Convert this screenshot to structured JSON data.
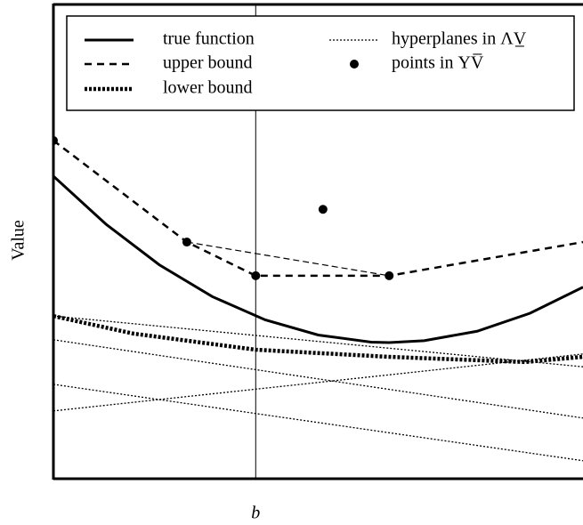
{
  "chart_data": {
    "type": "line",
    "y_label": "Value",
    "x_annotation": {
      "label": "b",
      "x": 0.382
    },
    "xlim": [
      0,
      1
    ],
    "ylim": [
      0,
      1
    ],
    "color": "#000000",
    "legend": "top",
    "series": [
      {
        "name": "true function",
        "style": "solid",
        "x": [
          0,
          0.1,
          0.2,
          0.3,
          0.4,
          0.5,
          0.6,
          0.634,
          0.7,
          0.8,
          0.9,
          1
        ],
        "values": [
          0.638,
          0.536,
          0.451,
          0.384,
          0.335,
          0.303,
          0.288,
          0.287,
          0.291,
          0.311,
          0.349,
          0.404
        ]
      },
      {
        "name": "upper bound",
        "style": "dashed",
        "x": [
          0,
          0.252,
          0.382,
          0.634,
          1
        ],
        "values": [
          0.713,
          0.499,
          0.428,
          0.428,
          0.499
        ]
      },
      {
        "name": "lower bound",
        "style": "dotted-thick",
        "x": [
          0,
          0.151,
          0.382,
          0.634,
          0.891,
          1
        ],
        "values": [
          0.343,
          0.306,
          0.272,
          0.257,
          0.246,
          0.257
        ]
      },
      {
        "name": "hyperplanes in ΛV̲",
        "style": "dotted",
        "x": [
          0,
          1
        ],
        "values": [
          0.343,
          0.236
        ]
      },
      {
        "style": "dotted",
        "x": [
          0,
          1
        ],
        "values": [
          0.293,
          0.128
        ]
      },
      {
        "style": "dotted",
        "x": [
          0,
          1
        ],
        "values": [
          0.199,
          0.038
        ]
      },
      {
        "style": "dotted",
        "x": [
          0,
          1
        ],
        "values": [
          0.143,
          0.263
        ]
      },
      {
        "style": "dashed-thin",
        "x": [
          0.252,
          0.634
        ],
        "values": [
          0.499,
          0.428
        ]
      },
      {
        "name": "points in ΥV̅",
        "style": "points",
        "x": [
          0,
          0.252,
          0.382,
          0.634,
          0.509
        ],
        "values": [
          0.713,
          0.499,
          0.428,
          0.428,
          0.568
        ]
      }
    ]
  }
}
